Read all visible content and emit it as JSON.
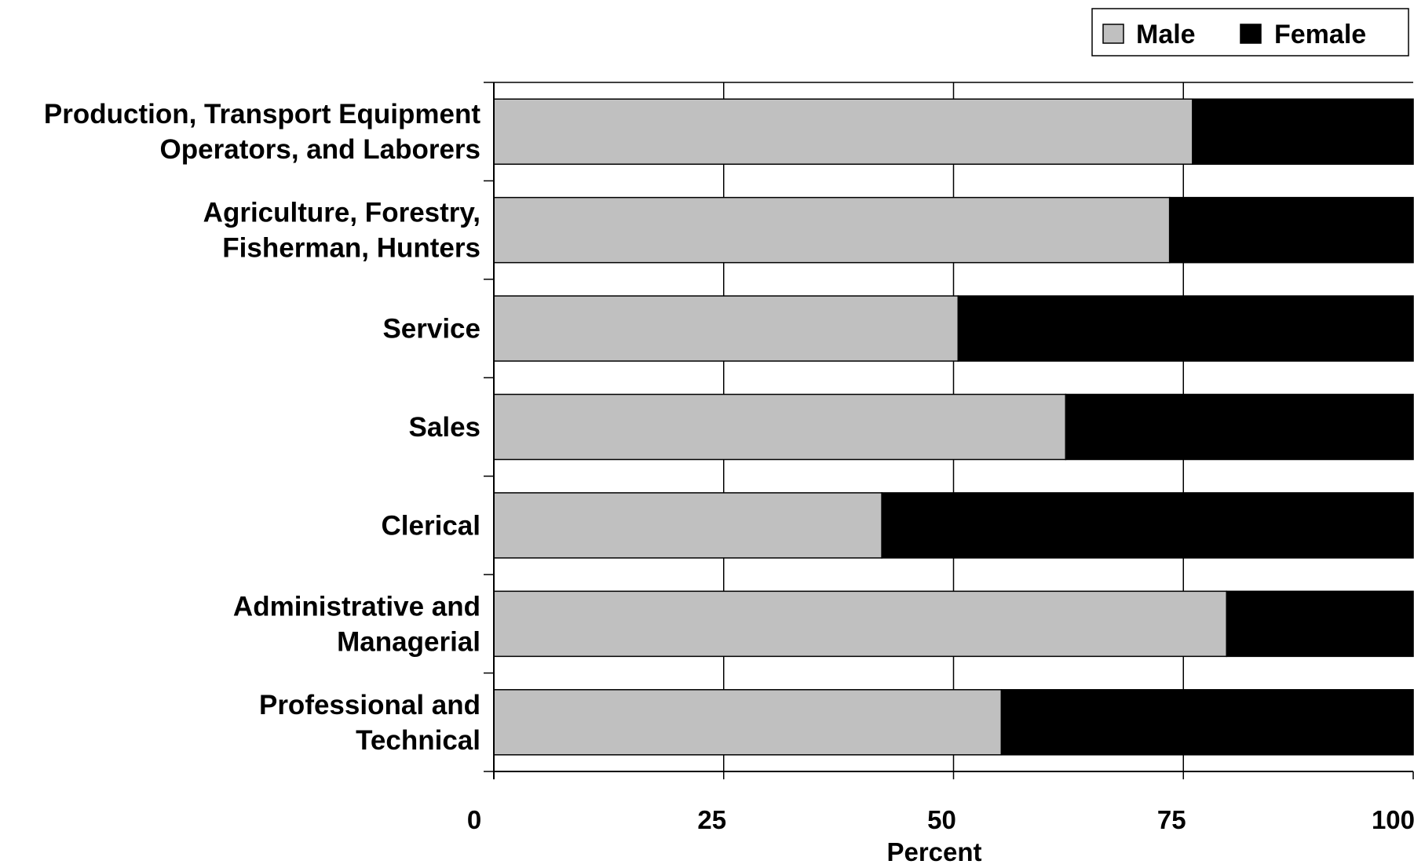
{
  "chart_data": {
    "type": "bar",
    "orientation": "horizontal",
    "stacked": true,
    "categories": [
      [
        "Production, Transport Equipment",
        "Operators, and Laborers"
      ],
      [
        "Agriculture, Forestry,",
        "Fisherman, Hunters"
      ],
      [
        "Service"
      ],
      [
        "Sales"
      ],
      [
        "Clerical"
      ],
      [
        "Administrative and",
        "Managerial"
      ],
      [
        "Professional and",
        "Technical"
      ]
    ],
    "series": [
      {
        "name": "Male",
        "color": "#c0c0c0",
        "values": [
          76,
          73.5,
          50.5,
          62.2,
          42.2,
          79.7,
          55.2
        ]
      },
      {
        "name": "Female",
        "color": "#000000",
        "values": [
          24,
          26.5,
          49.5,
          37.8,
          57.8,
          20.3,
          44.8
        ]
      }
    ],
    "xlabel": "Percent",
    "ylabel": "",
    "xlim": [
      0,
      100
    ],
    "xticks": [
      "0",
      "25",
      "50",
      "75",
      "100"
    ],
    "grid": "vertical",
    "legend": "top-right"
  }
}
